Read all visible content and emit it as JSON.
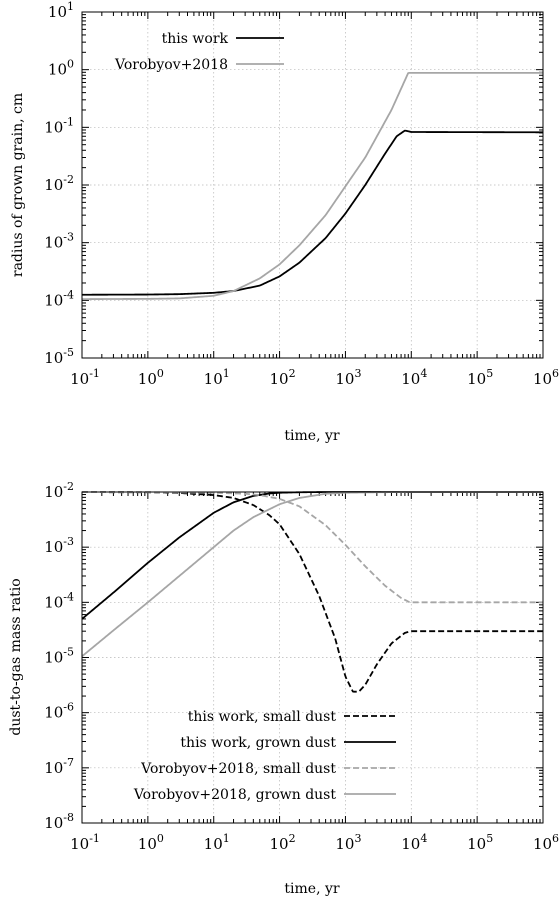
{
  "chart_data": [
    {
      "type": "line",
      "xlabel": "time, yr",
      "ylabel": "radius of grown grain, cm",
      "xscale": "log",
      "yscale": "log",
      "xlim": [
        0.1,
        1000000
      ],
      "ylim": [
        1e-05,
        10
      ],
      "x_ticks": [
        "10-1",
        "100",
        "101",
        "102",
        "103",
        "104",
        "105",
        "106"
      ],
      "y_ticks": [
        "10-5",
        "10-4",
        "10-3",
        "10-2",
        "10-1",
        "100",
        "101"
      ],
      "grid": true,
      "legend_position": "top-left",
      "series": [
        {
          "name": "this work",
          "color": "#000000",
          "dash": "solid",
          "x": [
            0.1,
            1,
            3,
            10,
            20,
            50,
            100,
            200,
            500,
            1000,
            2000,
            4000,
            6000,
            8000,
            10000,
            1000000
          ],
          "y": [
            0.000125,
            0.000126,
            0.000128,
            0.000135,
            0.000145,
            0.00018,
            0.00026,
            0.00045,
            0.0012,
            0.0032,
            0.01,
            0.035,
            0.07,
            0.088,
            0.083,
            0.082
          ]
        },
        {
          "name": "Vorobyov+2018",
          "color": "#a6a6a6",
          "dash": "solid",
          "x": [
            0.1,
            1,
            3,
            10,
            20,
            50,
            100,
            200,
            500,
            1000,
            2000,
            5000,
            9000,
            1000000
          ],
          "y": [
            0.000105,
            0.000106,
            0.000108,
            0.00012,
            0.000145,
            0.00024,
            0.00042,
            0.0009,
            0.003,
            0.0095,
            0.03,
            0.2,
            0.88,
            0.88
          ]
        }
      ]
    },
    {
      "type": "line",
      "xlabel": "time, yr",
      "ylabel": "dust-to-gas mass ratio",
      "xscale": "log",
      "yscale": "log",
      "xlim": [
        0.1,
        1000000
      ],
      "ylim": [
        1e-08,
        0.01
      ],
      "x_ticks": [
        "10-1",
        "100",
        "101",
        "102",
        "103",
        "104",
        "105",
        "106"
      ],
      "y_ticks": [
        "10-8",
        "10-7",
        "10-6",
        "10-5",
        "10-4",
        "10-3",
        "10-2"
      ],
      "grid": true,
      "legend_position": "bottom-center",
      "series": [
        {
          "name": "this work, small dust",
          "color": "#000000",
          "dash": "dashed",
          "x": [
            0.1,
            1,
            3,
            10,
            20,
            40,
            70,
            100,
            200,
            400,
            700,
            1000,
            1300,
            1600,
            2000,
            3000,
            5000,
            8000,
            10000,
            1000000
          ],
          "y": [
            0.00995,
            0.0099,
            0.0096,
            0.0088,
            0.0078,
            0.0058,
            0.0038,
            0.0026,
            0.00075,
            0.00013,
            2.2e-05,
            4.5e-06,
            2.4e-06,
            2.4e-06,
            3.2e-06,
            7.5e-06,
            1.8e-05,
            2.8e-05,
            3e-05,
            3e-05
          ]
        },
        {
          "name": "this work, grown dust",
          "color": "#000000",
          "dash": "solid",
          "x": [
            0.1,
            0.3,
            1,
            3,
            10,
            20,
            40,
            70,
            100,
            200,
            500,
            1000,
            1000000
          ],
          "y": [
            5e-05,
            0.00015,
            0.00052,
            0.0015,
            0.0042,
            0.0065,
            0.0085,
            0.0094,
            0.0097,
            0.0099,
            0.01,
            0.01,
            0.01
          ]
        },
        {
          "name": "Vorobyov+2018, small dust",
          "color": "#a6a6a6",
          "dash": "dashed",
          "x": [
            0.1,
            1,
            10,
            30,
            50,
            100,
            200,
            500,
            1000,
            2000,
            4000,
            7000,
            9500,
            1000000
          ],
          "y": [
            0.00995,
            0.0099,
            0.0097,
            0.0093,
            0.0088,
            0.0075,
            0.0055,
            0.0025,
            0.0011,
            0.00045,
            0.0002,
            0.00012,
            0.0001,
            0.0001
          ]
        },
        {
          "name": "Vorobyov+2018, grown dust",
          "color": "#a6a6a6",
          "dash": "solid",
          "x": [
            0.1,
            0.3,
            1,
            3,
            10,
            20,
            40,
            100,
            200,
            500,
            1000,
            3000,
            10000,
            1000000
          ],
          "y": [
            1.05e-05,
            3.1e-05,
            0.0001,
            0.0003,
            0.001,
            0.002,
            0.0035,
            0.006,
            0.0078,
            0.0093,
            0.0097,
            0.0099,
            0.01,
            0.01
          ]
        }
      ]
    }
  ]
}
